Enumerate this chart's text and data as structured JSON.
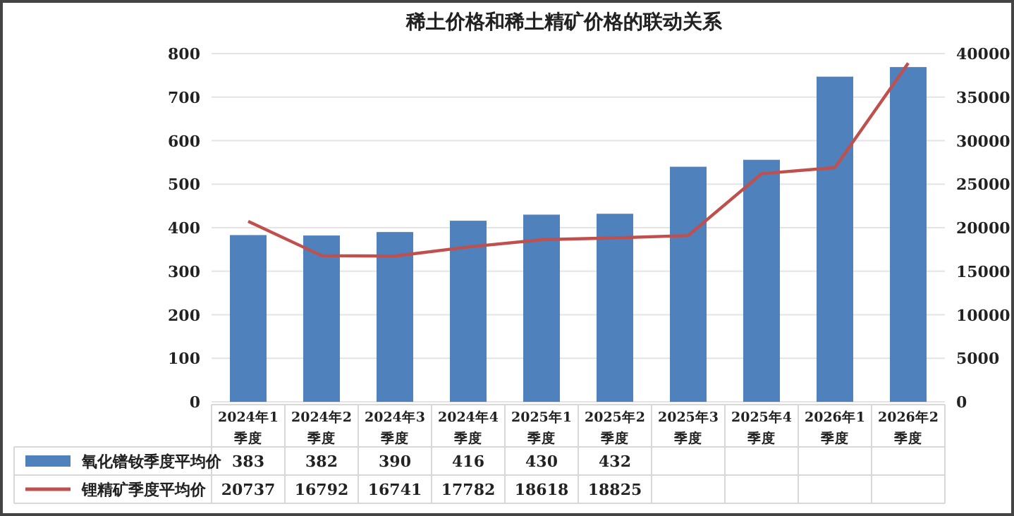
{
  "chart_data": {
    "type": "bar",
    "title": "稀土价格和稀土精矿价格的联动关系",
    "categories": [
      "2024年1季度",
      "2024年2季度",
      "2024年3季度",
      "2024年4季度",
      "2025年1季度",
      "2025年2季度",
      "2025年3季度",
      "2025年4季度",
      "2026年1季度",
      "2026年2季度"
    ],
    "series": [
      {
        "name": "氧化镨钕季度平均价",
        "color": "#4f81bd",
        "values": [
          383,
          382,
          390,
          416,
          430,
          432,
          540,
          556,
          747,
          769
        ],
        "value_labels": [
          "383",
          "382",
          "390",
          "416",
          "430",
          "432",
          null,
          null,
          null,
          null
        ]
      },
      {
        "name": "锂精矿季度平均价",
        "type": "line",
        "axis": "y2",
        "color": "#c0504d",
        "values": [
          20737,
          16792,
          16741,
          17782,
          18618,
          18825,
          19100,
          26200,
          26900,
          38900
        ],
        "value_labels": [
          "20737",
          "16792",
          "16741",
          "17782",
          "18618",
          "18825",
          null,
          null,
          null,
          null
        ]
      }
    ],
    "ylim": [
      0,
      800
    ],
    "yticks": [
      0,
      100,
      200,
      300,
      400,
      500,
      600,
      700,
      800
    ],
    "y2lim": [
      0,
      40000
    ],
    "y2ticks": [
      0,
      5000,
      10000,
      15000,
      20000,
      25000,
      30000,
      35000,
      40000
    ],
    "grid": "y",
    "legend": "bottom left",
    "marker": "none",
    "line_style": "solid"
  }
}
